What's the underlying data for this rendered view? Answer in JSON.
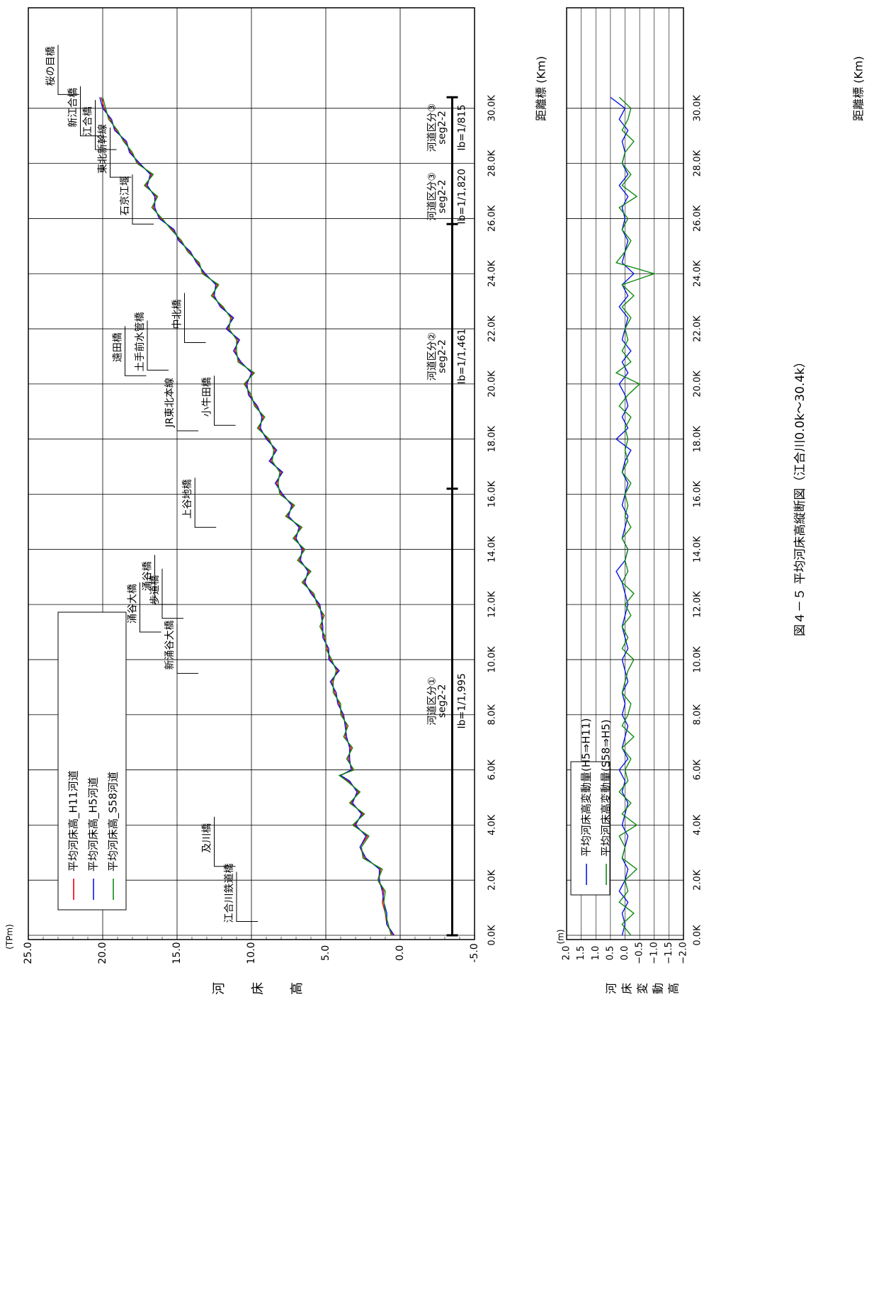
{
  "colors": {
    "h11": "#e8000b",
    "h5": "#0a17e0",
    "s58": "#108a10",
    "grid": "#000000",
    "text": "#000000"
  },
  "caption": "図４－５ 平均河床高縦断図（江合川0.0k～30.4k）",
  "main_panel": {
    "y_unit": "(TPm)",
    "y_title": "河床高",
    "x_title": "距離標 (Km)",
    "legend": [
      "平均河床高_H11河道",
      "平均河床高_H5河道",
      "平均河床高_S58河道"
    ]
  },
  "change_panel": {
    "y_unit": "(m)",
    "y_title": "河床変動高",
    "x_title": "距離標 (Km)",
    "legend": [
      "平均河床高変動量(H5⇒H11)",
      "平均河床高変動量(S58⇒H5)"
    ]
  },
  "chart_data": [
    {
      "type": "line",
      "title": "",
      "ylabel": "河床高",
      "xlabel": "距離標 (Km)",
      "xlim": [
        0,
        32
      ],
      "ylim": [
        -5,
        25
      ],
      "x_ticks": [
        "0.0K",
        "2.0K",
        "4.0K",
        "6.0K",
        "8.0K",
        "10.0K",
        "12.0K",
        "14.0K",
        "16.0K",
        "18.0K",
        "20.0K",
        "22.0K",
        "24.0K",
        "26.0K",
        "28.0K",
        "30.0K"
      ],
      "y_ticks": [
        "-5.0",
        "0.0",
        "5.0",
        "10.0",
        "15.0",
        "20.0",
        "25.0"
      ],
      "x": [
        0,
        0.4,
        0.8,
        1.2,
        1.6,
        2.0,
        2.4,
        2.8,
        3.2,
        3.6,
        4.0,
        4.4,
        4.8,
        5.2,
        5.6,
        5.8,
        6.0,
        6.4,
        6.8,
        7.2,
        7.6,
        8.0,
        8.4,
        8.8,
        9.2,
        9.6,
        10.0,
        10.4,
        10.8,
        11.2,
        11.6,
        12.0,
        12.4,
        12.8,
        13.2,
        13.6,
        14.0,
        14.4,
        14.8,
        15.2,
        15.6,
        16.0,
        16.4,
        16.8,
        17.2,
        17.6,
        18.0,
        18.4,
        18.8,
        19.2,
        19.6,
        20.0,
        20.4,
        20.8,
        21.2,
        21.6,
        22.0,
        22.4,
        22.8,
        23.2,
        23.6,
        24.0,
        24.4,
        24.8,
        25.2,
        25.6,
        26.0,
        26.4,
        26.8,
        27.2,
        27.6,
        28.0,
        28.4,
        28.8,
        29.2,
        29.6,
        30.0,
        30.4
      ],
      "series": [
        {
          "name": "平均河床高_H11河道",
          "color": "#e8000b",
          "values": [
            0.5,
            0.9,
            1.0,
            1.2,
            1.1,
            1.5,
            1.3,
            2.4,
            2.7,
            2.2,
            3.1,
            2.5,
            3.3,
            2.8,
            3.5,
            4.0,
            3.2,
            3.5,
            3.3,
            3.7,
            3.6,
            3.9,
            4.1,
            4.4,
            4.6,
            4.2,
            4.7,
            4.9,
            5.1,
            5.3,
            5.2,
            5.5,
            5.9,
            6.5,
            6.1,
            6.8,
            6.5,
            7.1,
            6.7,
            7.6,
            7.2,
            8.0,
            8.3,
            8.0,
            8.7,
            8.4,
            8.9,
            9.5,
            9.2,
            9.7,
            10.1,
            10.4,
            9.9,
            10.8,
            11.1,
            10.9,
            11.6,
            11.3,
            12.0,
            12.6,
            12.3,
            13.2,
            13.6,
            14.2,
            14.8,
            15.3,
            16.1,
            16.6,
            16.4,
            17.1,
            16.7,
            17.6,
            18.1,
            18.5,
            19.1,
            19.5,
            19.9,
            20.1
          ]
        },
        {
          "name": "平均河床高_H5河道",
          "color": "#0a17e0",
          "values": [
            0.4,
            0.9,
            0.9,
            1.1,
            1.2,
            1.4,
            1.4,
            2.3,
            2.7,
            2.3,
            3.0,
            2.6,
            3.2,
            2.9,
            3.4,
            4.0,
            3.3,
            3.4,
            3.4,
            3.6,
            3.7,
            3.8,
            4.2,
            4.3,
            4.7,
            4.1,
            4.8,
            4.8,
            5.2,
            5.2,
            5.3,
            5.4,
            6.0,
            6.4,
            6.2,
            6.7,
            6.6,
            7.0,
            6.8,
            7.5,
            7.3,
            7.9,
            8.4,
            7.9,
            8.8,
            8.3,
            9.0,
            9.4,
            9.3,
            9.6,
            10.2,
            10.3,
            10.0,
            10.7,
            11.2,
            10.8,
            11.7,
            11.2,
            12.1,
            12.5,
            12.4,
            13.1,
            13.7,
            14.1,
            14.9,
            15.2,
            16.2,
            16.5,
            16.5,
            17.0,
            16.8,
            17.5,
            18.2,
            18.4,
            19.2,
            19.4,
            20.0,
            20.2
          ]
        },
        {
          "name": "平均河床高_S58河道",
          "color": "#108a10",
          "values": [
            0.6,
            0.8,
            1.0,
            1.1,
            1.0,
            1.5,
            1.2,
            2.5,
            2.6,
            2.1,
            3.2,
            2.4,
            3.4,
            2.7,
            3.6,
            4.1,
            3.1,
            3.6,
            3.2,
            3.8,
            3.5,
            4.0,
            4.0,
            4.5,
            4.5,
            4.3,
            4.6,
            5.0,
            5.0,
            5.4,
            5.1,
            5.6,
            5.8,
            6.6,
            6.0,
            6.9,
            6.4,
            7.2,
            6.6,
            7.7,
            7.1,
            8.1,
            8.2,
            8.1,
            8.6,
            8.5,
            8.8,
            9.6,
            9.1,
            9.8,
            10.0,
            10.5,
            9.8,
            10.9,
            11.0,
            11.0,
            11.5,
            11.4,
            11.9,
            12.7,
            12.2,
            13.3,
            13.5,
            14.3,
            14.7,
            15.4,
            16.0,
            16.7,
            16.3,
            17.2,
            16.6,
            17.7,
            18.0,
            18.6,
            19.0,
            19.6,
            19.8,
            20.0
          ]
        }
      ]
    },
    {
      "type": "line",
      "title": "",
      "ylabel": "河床変動高",
      "xlabel": "距離標 (Km)",
      "xlim": [
        0,
        32
      ],
      "ylim": [
        -2,
        2
      ],
      "x_ticks": [
        "0.0K",
        "2.0K",
        "4.0K",
        "6.0K",
        "8.0K",
        "10.0K",
        "12.0K",
        "14.0K",
        "16.0K",
        "18.0K",
        "20.0K",
        "22.0K",
        "24.0K",
        "26.0K",
        "28.0K",
        "30.0K"
      ],
      "y_ticks": [
        "2.0",
        "1.5",
        "1.0",
        "0.5",
        "0.0",
        "−0.5",
        "−1.0",
        "−1.5",
        "−2.0"
      ],
      "x": [
        0,
        0.4,
        0.8,
        1.2,
        1.6,
        2.0,
        2.4,
        2.8,
        3.2,
        3.6,
        4.0,
        4.4,
        4.8,
        5.2,
        5.6,
        6.0,
        6.4,
        6.8,
        7.2,
        7.6,
        8.0,
        8.4,
        8.8,
        9.2,
        9.6,
        10.0,
        10.4,
        10.8,
        11.2,
        11.6,
        12.0,
        12.4,
        12.8,
        13.2,
        13.6,
        14.0,
        14.4,
        14.8,
        15.2,
        15.6,
        16.0,
        16.4,
        16.8,
        17.2,
        17.6,
        18.0,
        18.4,
        18.8,
        19.2,
        19.6,
        20.0,
        20.4,
        20.8,
        21.2,
        21.6,
        22.0,
        22.4,
        22.8,
        23.2,
        23.6,
        24.0,
        24.4,
        24.8,
        25.2,
        25.6,
        26.0,
        26.4,
        26.8,
        27.2,
        27.6,
        28.0,
        28.4,
        28.8,
        29.2,
        29.6,
        30.0,
        30.4
      ],
      "series": [
        {
          "name": "平均河床高変動量(H5⇒H11)",
          "color": "#0a17e0",
          "values": [
            0.1,
            0.0,
            0.1,
            -0.1,
            0.2,
            0.0,
            -0.1,
            0.1,
            0.0,
            -0.1,
            0.1,
            0.0,
            -0.1,
            0.1,
            0.0,
            0.2,
            -0.1,
            0.1,
            0.0,
            -0.1,
            0.1,
            0.0,
            0.1,
            -0.1,
            0.0,
            0.1,
            -0.1,
            0.0,
            0.1,
            0.0,
            -0.1,
            0.0,
            0.1,
            0.3,
            0.0,
            -0.1,
            0.1,
            0.0,
            -0.1,
            0.1,
            0.0,
            -0.1,
            0.1,
            0.0,
            -0.2,
            0.3,
            -0.1,
            0.1,
            -0.1,
            0.0,
            0.2,
            -0.1,
            0.1,
            -0.2,
            0.1,
            0.0,
            -0.1,
            0.2,
            -0.1,
            0.1,
            -0.3,
            0.1,
            0.0,
            -0.1,
            0.1,
            0.0,
            0.1,
            -0.1,
            0.2,
            -0.1,
            0.1,
            0.0,
            0.1,
            -0.1,
            0.2,
            0.0,
            0.5
          ]
        },
        {
          "name": "平均河床高変動量(S58⇒H5)",
          "color": "#108a10",
          "values": [
            -0.2,
            0.1,
            -0.3,
            0.2,
            -0.1,
            0.0,
            -0.4,
            0.1,
            0.0,
            0.2,
            -0.4,
            0.1,
            -0.2,
            0.2,
            -0.1,
            0.0,
            -0.2,
            0.1,
            -0.3,
            0.1,
            -0.1,
            -0.2,
            0.1,
            0.0,
            -0.1,
            -0.3,
            0.1,
            -0.1,
            0.1,
            -0.2,
            0.0,
            -0.3,
            0.1,
            -0.1,
            0.0,
            -0.1,
            0.1,
            -0.2,
            0.0,
            -0.1,
            0.0,
            -0.2,
            0.1,
            -0.1,
            0.0,
            -0.1,
            0.0,
            -0.2,
            0.2,
            -0.1,
            -0.5,
            0.3,
            -0.2,
            0.1,
            -0.1,
            0.0,
            -0.2,
            0.1,
            -0.3,
            0.1,
            -1.0,
            0.3,
            0.0,
            -0.2,
            0.1,
            -0.1,
            0.2,
            -0.4,
            0.1,
            -0.2,
            0.1,
            0.0,
            -0.3,
            0.1,
            -0.1,
            -0.2,
            0.2
          ]
        }
      ]
    }
  ],
  "bridges": [
    {
      "label": "江合川鉄道橋",
      "km": 0.5,
      "y": 11.0
    },
    {
      "label": "及川橋",
      "km": 2.5,
      "y": 12.5
    },
    {
      "label": "新涌谷大橋",
      "km": 9.5,
      "y": 15.0
    },
    {
      "label": "涌谷大橋",
      "km": 11.0,
      "y": 17.5
    },
    {
      "label": "歩道橋",
      "km": 11.5,
      "y": 16.0
    },
    {
      "label": "涌谷橋",
      "km": 12.0,
      "y": 16.5
    },
    {
      "label": "上谷地橋",
      "km": 14.8,
      "y": 13.8
    },
    {
      "label": "JR東北本線",
      "km": 18.3,
      "y": 15.0
    },
    {
      "label": "小牛田橋",
      "km": 18.5,
      "y": 12.5
    },
    {
      "label": "遠田橋",
      "km": 20.3,
      "y": 18.5
    },
    {
      "label": "土手前水管橋",
      "km": 20.5,
      "y": 17.0
    },
    {
      "label": "中北橋",
      "km": 21.5,
      "y": 14.5
    },
    {
      "label": "石京江堰",
      "km": 25.8,
      "y": 18.0
    },
    {
      "label": "東北新幹線",
      "km": 27.5,
      "y": 19.5
    },
    {
      "label": "江合橋",
      "km": 28.5,
      "y": 20.5
    },
    {
      "label": "新江合橋",
      "km": 29.0,
      "y": 21.5
    },
    {
      "label": "桜の目橋",
      "km": 30.5,
      "y": 23.0
    }
  ],
  "segments": [
    {
      "name": "河道区分①",
      "seg": "seg2-2",
      "slope": "Ib=1/1,995",
      "km": 8.5
    },
    {
      "name": "河道区分②",
      "seg": "seg2-2",
      "slope": "Ib=1/1,461",
      "km": 21.0
    },
    {
      "name": "河道区分③",
      "seg": "seg2-2",
      "slope": "Ib=1/1,820",
      "km": 26.8
    },
    {
      "name": "河道区分③",
      "seg": "seg2-2",
      "slope": "Ib=1/815",
      "km": 29.3
    }
  ],
  "segment_bounds_km": [
    0,
    16.2,
    25.8,
    30.4
  ]
}
